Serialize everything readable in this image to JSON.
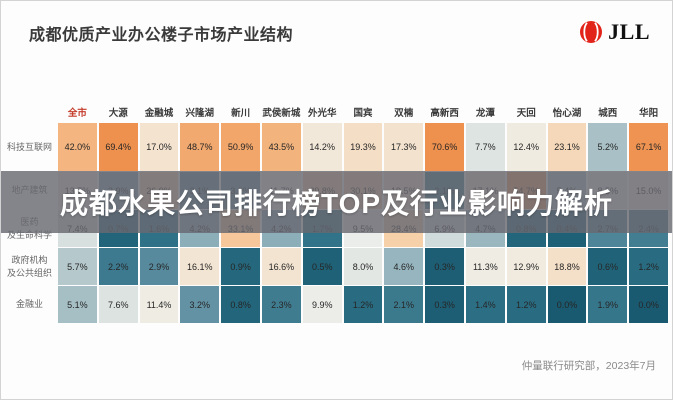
{
  "header": {
    "title": "成都优质产业办公楼子市场产业结构",
    "logo_text": "JLL",
    "logo_color": "#e2231a"
  },
  "overlay": {
    "text": "成都水果公司排行榜TOP及行业影响力解析"
  },
  "footer": {
    "source": "仲量联行研究部，2023年7月"
  },
  "chart_data": {
    "type": "heatmap",
    "title": "成都优质产业办公楼子市场产业结构",
    "value_unit": "%",
    "legend_position": "none",
    "grid": false,
    "columns": [
      "全市",
      "大源",
      "金融城",
      "兴隆湖",
      "新川",
      "武侯新城",
      "外光华",
      "国宾",
      "双楠",
      "高新西",
      "龙潭",
      "天回",
      "怡心湖",
      "城西",
      "华阳"
    ],
    "first_column_color": "#c43b2a",
    "rows": [
      {
        "label": "科技互联网",
        "values": [
          42.0,
          69.4,
          17.0,
          48.7,
          50.9,
          43.5,
          14.2,
          19.3,
          17.3,
          70.6,
          7.7,
          12.4,
          23.1,
          5.2,
          67.1
        ]
      },
      {
        "label": "地产建筑",
        "values": [
          13.7,
          3.9,
          26.9,
          3.1,
          3.2,
          11.7,
          29.8,
          30.1,
          19.5,
          2.1,
          17.1,
          54.7,
          5.4,
          8.5,
          15.0
        ]
      },
      {
        "label": "医药\n及生命科学",
        "values": [
          7.4,
          0.7,
          1.6,
          4.2,
          33.1,
          4.2,
          1.7,
          9.5,
          28.4,
          6.9,
          4.7,
          0.8,
          0.4,
          2.7,
          2.4
        ]
      },
      {
        "label": "政府机构\n及公共组织",
        "values": [
          5.7,
          2.2,
          2.9,
          16.1,
          0.9,
          16.6,
          0.5,
          8.0,
          4.6,
          0.3,
          11.3,
          12.9,
          18.8,
          0.6,
          1.2
        ]
      },
      {
        "label": "金融业",
        "values": [
          5.1,
          7.6,
          11.4,
          3.2,
          0.8,
          2.3,
          9.9,
          1.2,
          2.1,
          0.3,
          1.4,
          1.2,
          0.0,
          1.9,
          0.0
        ]
      }
    ],
    "colorscale": {
      "description": "diverging: dark teal low, cream mid, orange high",
      "anchors": [
        [
          0,
          "#1a5a70"
        ],
        [
          0.5,
          "#1f6176"
        ],
        [
          1,
          "#266a80"
        ],
        [
          1.5,
          "#2d7086"
        ],
        [
          2,
          "#38778c"
        ],
        [
          2.5,
          "#457f93"
        ],
        [
          3,
          "#5b8da0"
        ],
        [
          3.5,
          "#6f9aa9"
        ],
        [
          4,
          "#86aab5"
        ],
        [
          5,
          "#a3bdc4"
        ],
        [
          6,
          "#bccdd0"
        ],
        [
          7,
          "#d2dcdc"
        ],
        [
          8,
          "#e2e7e4"
        ],
        [
          9.5,
          "#ebedea"
        ],
        [
          11,
          "#efece4"
        ],
        [
          13,
          "#f1eadf"
        ],
        [
          15,
          "#f2e7d7"
        ],
        [
          17,
          "#f3e3cf"
        ],
        [
          19,
          "#f4dfc7"
        ],
        [
          22,
          "#f5dabd"
        ],
        [
          26,
          "#f6d4b1"
        ],
        [
          30,
          "#f6cda4"
        ],
        [
          34,
          "#f5c597"
        ],
        [
          40,
          "#f4b986"
        ],
        [
          45,
          "#f3b078"
        ],
        [
          50,
          "#f2a76c"
        ],
        [
          55,
          "#f1a062"
        ],
        [
          60,
          "#f09a5b"
        ],
        [
          65,
          "#ef9554"
        ],
        [
          72,
          "#ee8f4c"
        ]
      ]
    }
  }
}
